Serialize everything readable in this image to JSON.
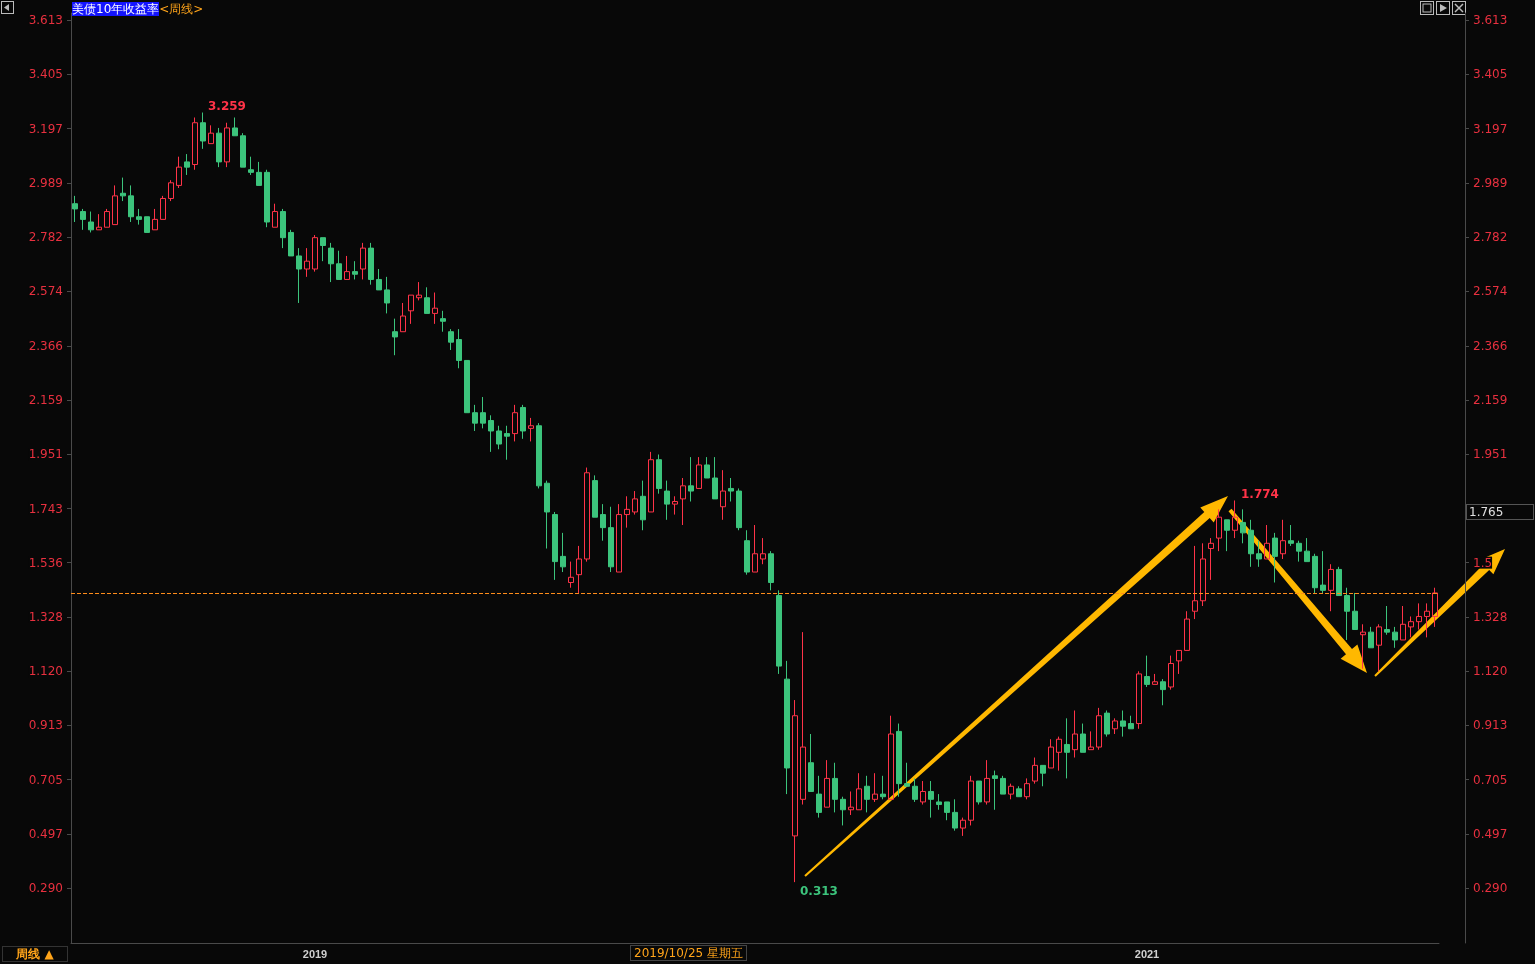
{
  "chart_data": {
    "type": "candlestick",
    "title": "美债10年收益率",
    "subtitle": "<周线>",
    "categories": [
      null,
      null,
      null,
      null,
      null,
      null,
      null,
      null,
      null,
      null,
      null,
      null,
      null,
      null,
      null,
      null,
      null,
      null,
      null,
      null,
      null,
      null,
      null,
      null,
      null,
      null,
      null,
      null,
      null,
      null,
      "2019",
      null,
      null,
      null,
      null,
      null,
      null,
      null,
      null,
      null,
      null,
      null,
      null,
      null,
      null,
      null,
      null,
      null,
      null,
      null,
      null,
      null,
      null,
      null,
      null,
      null,
      null,
      null,
      null,
      null,
      null,
      null,
      null,
      null,
      null,
      null,
      null,
      null,
      null,
      null,
      null,
      null,
      null,
      null,
      null,
      null,
      null,
      null,
      null,
      null,
      null,
      null,
      null,
      null,
      null,
      null,
      null,
      null,
      null,
      null,
      null,
      null,
      null,
      null,
      null,
      null,
      null,
      null,
      null,
      null,
      null,
      null,
      null,
      null,
      null,
      null,
      null,
      null,
      null,
      null,
      null,
      null,
      null,
      null,
      null,
      null,
      null,
      null,
      null,
      null,
      null,
      null,
      null,
      null,
      null,
      null,
      null,
      null,
      null,
      null,
      null,
      null,
      null,
      null,
      "2021",
      null,
      null,
      null,
      null,
      null,
      null,
      null,
      null,
      null,
      null,
      null,
      null,
      null,
      null,
      null,
      null,
      null,
      null,
      null,
      null,
      null,
      null,
      null,
      null,
      null,
      null,
      null,
      null,
      null,
      null,
      null,
      null,
      null,
      null,
      null,
      null
    ],
    "ohlc": [
      [
        2.91,
        2.94,
        2.84,
        2.89
      ],
      [
        2.88,
        2.89,
        2.81,
        2.85
      ],
      [
        2.84,
        2.88,
        2.8,
        2.81
      ],
      [
        2.81,
        2.87,
        2.81,
        2.82
      ],
      [
        2.82,
        2.89,
        2.82,
        2.88
      ],
      [
        2.83,
        2.98,
        2.83,
        2.94
      ],
      [
        2.95,
        3.01,
        2.92,
        2.94
      ],
      [
        2.94,
        2.98,
        2.84,
        2.86
      ],
      [
        2.86,
        2.89,
        2.83,
        2.85
      ],
      [
        2.86,
        2.86,
        2.8,
        2.8
      ],
      [
        2.81,
        2.89,
        2.81,
        2.85
      ],
      [
        2.85,
        2.94,
        2.85,
        2.93
      ],
      [
        2.93,
        3.0,
        2.92,
        2.99
      ],
      [
        2.98,
        3.09,
        2.97,
        3.05
      ],
      [
        3.07,
        3.1,
        3.02,
        3.05
      ],
      [
        3.06,
        3.24,
        3.04,
        3.22
      ],
      [
        3.22,
        3.259,
        3.12,
        3.15
      ],
      [
        3.14,
        3.21,
        3.14,
        3.18
      ],
      [
        3.18,
        3.2,
        3.05,
        3.07
      ],
      [
        3.07,
        3.22,
        3.05,
        3.2
      ],
      [
        3.2,
        3.24,
        3.17,
        3.17
      ],
      [
        3.17,
        3.18,
        3.05,
        3.05
      ],
      [
        3.04,
        3.09,
        3.02,
        3.03
      ],
      [
        3.03,
        3.07,
        2.98,
        2.98
      ],
      [
        3.03,
        3.04,
        2.82,
        2.84
      ],
      [
        2.82,
        2.91,
        2.82,
        2.88
      ],
      [
        2.88,
        2.89,
        2.74,
        2.78
      ],
      [
        2.8,
        2.81,
        2.71,
        2.71
      ],
      [
        2.71,
        2.74,
        2.53,
        2.66
      ],
      [
        2.66,
        2.74,
        2.63,
        2.69
      ],
      [
        2.66,
        2.79,
        2.65,
        2.78
      ],
      [
        2.78,
        2.78,
        2.69,
        2.75
      ],
      [
        2.74,
        2.76,
        2.61,
        2.68
      ],
      [
        2.68,
        2.73,
        2.62,
        2.62
      ],
      [
        2.62,
        2.71,
        2.62,
        2.65
      ],
      [
        2.65,
        2.69,
        2.62,
        2.64
      ],
      [
        2.66,
        2.76,
        2.62,
        2.74
      ],
      [
        2.74,
        2.76,
        2.6,
        2.62
      ],
      [
        2.62,
        2.66,
        2.58,
        2.58
      ],
      [
        2.58,
        2.63,
        2.49,
        2.53
      ],
      [
        2.42,
        2.47,
        2.33,
        2.4
      ],
      [
        2.42,
        2.53,
        2.42,
        2.48
      ],
      [
        2.5,
        2.56,
        2.45,
        2.56
      ],
      [
        2.55,
        2.61,
        2.54,
        2.56
      ],
      [
        2.55,
        2.59,
        2.49,
        2.49
      ],
      [
        2.49,
        2.57,
        2.45,
        2.51
      ],
      [
        2.47,
        2.5,
        2.42,
        2.46
      ],
      [
        2.42,
        2.43,
        2.35,
        2.38
      ],
      [
        2.39,
        2.43,
        2.28,
        2.31
      ],
      [
        2.31,
        2.31,
        2.11,
        2.11
      ],
      [
        2.11,
        2.14,
        2.04,
        2.07
      ],
      [
        2.11,
        2.17,
        2.05,
        2.07
      ],
      [
        2.08,
        2.1,
        1.96,
        2.04
      ],
      [
        2.04,
        2.06,
        1.97,
        1.99
      ],
      [
        2.03,
        2.06,
        1.93,
        2.02
      ],
      [
        2.03,
        2.14,
        2.0,
        2.11
      ],
      [
        2.13,
        2.14,
        2.01,
        2.04
      ],
      [
        2.05,
        2.09,
        2.0,
        2.06
      ],
      [
        2.06,
        2.07,
        1.82,
        1.83
      ],
      [
        1.84,
        1.85,
        1.59,
        1.73
      ],
      [
        1.72,
        1.73,
        1.47,
        1.54
      ],
      [
        1.56,
        1.65,
        1.5,
        1.52
      ],
      [
        1.46,
        1.54,
        1.44,
        1.48
      ],
      [
        1.49,
        1.6,
        1.42,
        1.55
      ],
      [
        1.55,
        1.9,
        1.54,
        1.88
      ],
      [
        1.85,
        1.87,
        1.71,
        1.71
      ],
      [
        1.72,
        1.76,
        1.62,
        1.67
      ],
      [
        1.67,
        1.75,
        1.5,
        1.52
      ],
      [
        1.5,
        1.76,
        1.5,
        1.72
      ],
      [
        1.72,
        1.79,
        1.67,
        1.74
      ],
      [
        1.73,
        1.81,
        1.72,
        1.78
      ],
      [
        1.79,
        1.85,
        1.66,
        1.7
      ],
      [
        1.73,
        1.96,
        1.73,
        1.93
      ],
      [
        1.93,
        1.95,
        1.8,
        1.82
      ],
      [
        1.81,
        1.85,
        1.7,
        1.76
      ],
      [
        1.76,
        1.79,
        1.72,
        1.77
      ],
      [
        1.78,
        1.86,
        1.68,
        1.83
      ],
      [
        1.83,
        1.94,
        1.77,
        1.81
      ],
      [
        1.82,
        1.94,
        1.82,
        1.91
      ],
      [
        1.91,
        1.94,
        1.86,
        1.86
      ],
      [
        1.86,
        1.94,
        1.78,
        1.78
      ],
      [
        1.75,
        1.89,
        1.7,
        1.81
      ],
      [
        1.82,
        1.86,
        1.77,
        1.81
      ],
      [
        1.81,
        1.82,
        1.66,
        1.67
      ],
      [
        1.62,
        1.66,
        1.49,
        1.5
      ],
      [
        1.5,
        1.68,
        1.5,
        1.57
      ],
      [
        1.55,
        1.63,
        1.53,
        1.57
      ],
      [
        1.57,
        1.58,
        1.43,
        1.46
      ],
      [
        1.41,
        1.43,
        1.11,
        1.14
      ],
      [
        1.09,
        1.16,
        0.65,
        0.75
      ],
      [
        0.49,
        1.01,
        0.313,
        0.95
      ],
      [
        0.63,
        1.27,
        0.61,
        0.83
      ],
      [
        0.77,
        0.88,
        0.66,
        0.66
      ],
      [
        0.65,
        0.72,
        0.56,
        0.58
      ],
      [
        0.6,
        0.78,
        0.6,
        0.71
      ],
      [
        0.71,
        0.77,
        0.58,
        0.63
      ],
      [
        0.63,
        0.64,
        0.53,
        0.59
      ],
      [
        0.59,
        0.66,
        0.57,
        0.6
      ],
      [
        0.59,
        0.73,
        0.59,
        0.67
      ],
      [
        0.68,
        0.72,
        0.58,
        0.63
      ],
      [
        0.63,
        0.73,
        0.62,
        0.65
      ],
      [
        0.65,
        0.72,
        0.63,
        0.64
      ],
      [
        0.63,
        0.95,
        0.63,
        0.88
      ],
      [
        0.89,
        0.92,
        0.64,
        0.69
      ],
      [
        0.69,
        0.77,
        0.68,
        0.68
      ],
      [
        0.68,
        0.71,
        0.62,
        0.63
      ],
      [
        0.62,
        0.7,
        0.61,
        0.66
      ],
      [
        0.66,
        0.7,
        0.56,
        0.63
      ],
      [
        0.62,
        0.65,
        0.59,
        0.61
      ],
      [
        0.62,
        0.62,
        0.55,
        0.58
      ],
      [
        0.58,
        0.63,
        0.51,
        0.52
      ],
      [
        0.52,
        0.56,
        0.49,
        0.55
      ],
      [
        0.55,
        0.72,
        0.53,
        0.7
      ],
      [
        0.7,
        0.7,
        0.61,
        0.62
      ],
      [
        0.62,
        0.78,
        0.61,
        0.71
      ],
      [
        0.72,
        0.74,
        0.59,
        0.71
      ],
      [
        0.71,
        0.72,
        0.65,
        0.65
      ],
      [
        0.65,
        0.69,
        0.63,
        0.68
      ],
      [
        0.67,
        0.68,
        0.64,
        0.64
      ],
      [
        0.64,
        0.71,
        0.63,
        0.69
      ],
      [
        0.7,
        0.79,
        0.69,
        0.76
      ],
      [
        0.76,
        0.76,
        0.68,
        0.73
      ],
      [
        0.75,
        0.86,
        0.75,
        0.83
      ],
      [
        0.81,
        0.87,
        0.74,
        0.86
      ],
      [
        0.84,
        0.94,
        0.71,
        0.81
      ],
      [
        0.82,
        0.97,
        0.79,
        0.88
      ],
      [
        0.88,
        0.92,
        0.81,
        0.81
      ],
      [
        0.82,
        0.89,
        0.82,
        0.83
      ],
      [
        0.83,
        0.98,
        0.82,
        0.95
      ],
      [
        0.96,
        0.97,
        0.87,
        0.88
      ],
      [
        0.9,
        0.94,
        0.88,
        0.93
      ],
      [
        0.93,
        0.97,
        0.87,
        0.91
      ],
      [
        0.92,
        0.95,
        0.9,
        0.9
      ],
      [
        0.92,
        1.12,
        0.9,
        1.11
      ],
      [
        1.1,
        1.18,
        1.06,
        1.07
      ],
      [
        1.07,
        1.11,
        1.07,
        1.08
      ],
      [
        1.08,
        1.09,
        0.99,
        1.05
      ],
      [
        1.06,
        1.18,
        1.05,
        1.15
      ],
      [
        1.16,
        1.2,
        1.11,
        1.2
      ],
      [
        1.2,
        1.35,
        1.2,
        1.32
      ],
      [
        1.35,
        1.6,
        1.32,
        1.39
      ],
      [
        1.39,
        1.61,
        1.37,
        1.55
      ],
      [
        1.59,
        1.63,
        1.47,
        1.61
      ],
      [
        1.63,
        1.74,
        1.58,
        1.71
      ],
      [
        1.7,
        1.7,
        1.58,
        1.66
      ],
      [
        1.66,
        1.774,
        1.63,
        1.71
      ],
      [
        1.69,
        1.74,
        1.61,
        1.65
      ],
      [
        1.66,
        1.7,
        1.52,
        1.57
      ],
      [
        1.57,
        1.62,
        1.52,
        1.55
      ],
      [
        1.55,
        1.68,
        1.55,
        1.61
      ],
      [
        1.63,
        1.65,
        1.46,
        1.56
      ],
      [
        1.57,
        1.7,
        1.55,
        1.62
      ],
      [
        1.62,
        1.68,
        1.6,
        1.61
      ],
      [
        1.61,
        1.62,
        1.54,
        1.58
      ],
      [
        1.58,
        1.63,
        1.54,
        1.54
      ],
      [
        1.56,
        1.57,
        1.42,
        1.44
      ],
      [
        1.45,
        1.58,
        1.42,
        1.43
      ],
      [
        1.43,
        1.53,
        1.35,
        1.51
      ],
      [
        1.51,
        1.52,
        1.41,
        1.41
      ],
      [
        1.41,
        1.44,
        1.24,
        1.35
      ],
      [
        1.35,
        1.42,
        1.28,
        1.28
      ],
      [
        1.26,
        1.3,
        1.13,
        1.27
      ],
      [
        1.27,
        1.29,
        1.21,
        1.21
      ],
      [
        1.22,
        1.3,
        1.12,
        1.29
      ],
      [
        1.28,
        1.37,
        1.26,
        1.27
      ],
      [
        1.27,
        1.29,
        1.21,
        1.24
      ],
      [
        1.24,
        1.37,
        1.24,
        1.3
      ],
      [
        1.29,
        1.33,
        1.25,
        1.31
      ],
      [
        1.31,
        1.38,
        1.28,
        1.33
      ],
      [
        1.33,
        1.38,
        1.25,
        1.35
      ],
      [
        1.33,
        1.44,
        1.29,
        1.42
      ]
    ],
    "colors": [
      "#3cc47c",
      "#3cc47c",
      "#3cc47c",
      "#ff3348",
      "#ff3348",
      "#ff3348",
      "#3cc47c",
      "#3cc47c",
      "#3cc47c",
      "#3cc47c",
      "#ff3348",
      "#ff3348",
      "#ff3348",
      "#ff3348",
      "#3cc47c",
      "#ff3348",
      "#3cc47c",
      "#ff3348",
      "#3cc47c",
      "#ff3348",
      "#3cc47c",
      "#3cc47c",
      "#3cc47c",
      "#3cc47c",
      "#3cc47c",
      "#ff3348",
      "#3cc47c",
      "#3cc47c",
      "#3cc47c",
      "#ff3348",
      "#ff3348",
      "#3cc47c",
      "#3cc47c",
      "#3cc47c",
      "#ff3348",
      "#3cc47c",
      "#ff3348",
      "#3cc47c",
      "#3cc47c",
      "#3cc47c",
      "#3cc47c",
      "#ff3348",
      "#ff3348",
      "#ff3348",
      "#3cc47c",
      "#ff3348",
      "#3cc47c",
      "#3cc47c",
      "#3cc47c",
      "#3cc47c",
      "#3cc47c",
      "#3cc47c",
      "#3cc47c",
      "#3cc47c",
      "#3cc47c",
      "#ff3348",
      "#3cc47c",
      "#ff3348",
      "#3cc47c",
      "#3cc47c",
      "#3cc47c",
      "#3cc47c",
      "#ff3348",
      "#ff3348",
      "#ff3348",
      "#3cc47c",
      "#3cc47c",
      "#3cc47c",
      "#ff3348",
      "#ff3348",
      "#ff3348",
      "#3cc47c",
      "#ff3348",
      "#3cc47c",
      "#3cc47c",
      "#ff3348",
      "#ff3348",
      "#3cc47c",
      "#ff3348",
      "#3cc47c",
      "#3cc47c",
      "#ff3348",
      "#3cc47c",
      "#3cc47c",
      "#3cc47c",
      "#ff3348",
      "#ff3348",
      "#3cc47c",
      "#3cc47c",
      "#3cc47c",
      "#ff3348",
      "#ff3348",
      "#3cc47c",
      "#3cc47c",
      "#ff3348",
      "#3cc47c",
      "#3cc47c",
      "#ff3348",
      "#ff3348",
      "#3cc47c",
      "#ff3348",
      "#3cc47c",
      "#ff3348",
      "#3cc47c",
      "#3cc47c",
      "#3cc47c",
      "#ff3348",
      "#3cc47c",
      "#3cc47c",
      "#3cc47c",
      "#3cc47c",
      "#ff3348",
      "#ff3348",
      "#3cc47c",
      "#ff3348",
      "#3cc47c",
      "#3cc47c",
      "#ff3348",
      "#3cc47c",
      "#ff3348",
      "#ff3348",
      "#3cc47c",
      "#ff3348",
      "#ff3348",
      "#3cc47c",
      "#ff3348",
      "#3cc47c",
      "#ff3348",
      "#ff3348",
      "#3cc47c",
      "#ff3348",
      "#3cc47c",
      "#3cc47c",
      "#ff3348",
      "#3cc47c",
      "#ff3348",
      "#3cc47c",
      "#ff3348",
      "#ff3348",
      "#ff3348",
      "#ff3348",
      "#ff3348",
      "#ff3348",
      "#ff3348",
      "#3cc47c",
      "#ff3348",
      "#3cc47c",
      "#3cc47c",
      "#3cc47c",
      "#ff3348",
      "#3cc47c",
      "#ff3348",
      "#3cc47c",
      "#3cc47c",
      "#3cc47c",
      "#3cc47c",
      "#3cc47c",
      "#ff3348",
      "#3cc47c",
      "#3cc47c",
      "#3cc47c",
      "#ff3348",
      "#3cc47c",
      "#ff3348",
      "#3cc47c",
      "#3cc47c",
      "#ff3348",
      "#ff3348",
      "#ff3348",
      "#ff3348",
      "#ff3348"
    ],
    "ylim": [
      0.08,
      3.64
    ],
    "yticks": [
      {
        "value": 0.29,
        "label": "0.290"
      },
      0.497,
      0.705,
      0.913,
      {
        "value": 1.12,
        "label": "1.120"
      },
      1.328,
      1.536,
      1.743,
      1.951,
      2.159,
      2.366,
      2.574,
      2.782,
      2.989,
      3.197,
      3.405,
      3.613
    ],
    "y2lim": [
      0.08,
      3.64
    ],
    "y2ticks": [
      {
        "value": 0.29,
        "label": "0.290"
      },
      0.497,
      0.705,
      0.913,
      {
        "value": 1.12,
        "label": "1.120"
      },
      1.328,
      {
        "value": 1.536,
        "label": "1.5"
      },
      {
        "value": 1.743,
        "label": null
      },
      1.951,
      2.159,
      2.366,
      2.574,
      2.782,
      2.989,
      3.197,
      3.405,
      3.613
    ],
    "ref_lines": [
      {
        "axis": "y",
        "value": 1.42,
        "color": "#ff8c1a",
        "line_style": "dashed"
      }
    ],
    "annotations": [
      "3.259",
      "0.313",
      "1.774",
      "1.765",
      "周线 ▲",
      "2019/10/25 星期五"
    ]
  }
}
